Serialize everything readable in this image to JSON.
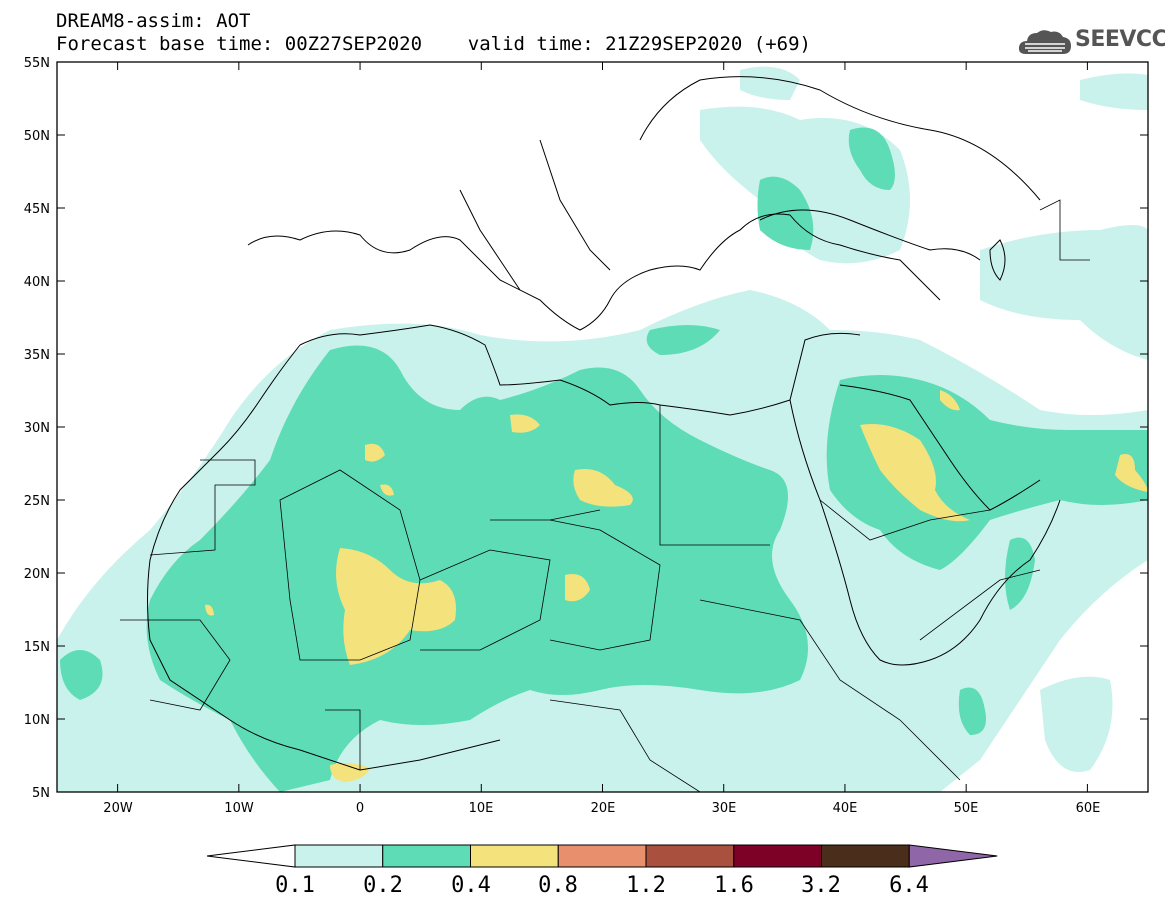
{
  "header": {
    "line1": "DREAM8-assim: AOT",
    "line2": "Forecast base time: 00Z27SEP2020    valid time: 21Z29SEP2020 (+69)"
  },
  "logo": {
    "text": "SEEVCCC",
    "icon": "cloud-icon"
  },
  "map": {
    "lat_labels": [
      "55N",
      "50N",
      "45N",
      "40N",
      "35N",
      "30N",
      "25N",
      "20N",
      "15N",
      "10N",
      "5N"
    ],
    "lon_labels": [
      "20W",
      "10W",
      "0",
      "10E",
      "20E",
      "30E",
      "40E",
      "50E",
      "60E"
    ],
    "extent": {
      "lon": [
        -25,
        65
      ],
      "lat": [
        5,
        55
      ]
    }
  },
  "colorbar": {
    "levels": [
      "0.1",
      "0.2",
      "0.4",
      "0.8",
      "1.2",
      "1.6",
      "3.2",
      "6.4"
    ],
    "colors": [
      "#ffffff",
      "#c9f2ec",
      "#5edcb5",
      "#f4e27c",
      "#e88f6e",
      "#a9503f",
      "#7d0127",
      "#4a2d1a",
      "#8f67a9"
    ]
  },
  "colors": {
    "c01": "#c9f2ec",
    "c02": "#5edcb5",
    "c04": "#f4e27c"
  }
}
